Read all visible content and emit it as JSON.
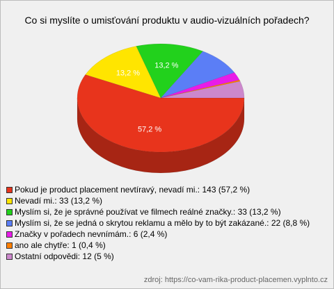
{
  "chart_data": {
    "type": "pie",
    "title": "Co si myslíte o umisťování produktu v audio-vizuálních pořadech?",
    "categories": [
      "Pokud je product placement nevtíravý, nevadí mi.: 143 (57,2 %)",
      "Nevadí mi.: 33 (13,2 %)",
      "Myslím si, že je správné používat ve filmech reálné značky.: 33 (13,2 %)",
      "Myslím si, že se jedná o skrytou reklamu a mělo by to být zakázané.: 22 (8,8 %)",
      "Značky v pořadech nevnímám.: 6 (2,4 %)",
      "ano ale chytře: 1 (0,4 %)",
      "Ostatní odpovědi: 12 (5 %)"
    ],
    "values": [
      57.2,
      13.2,
      13.2,
      8.8,
      2.4,
      0.4,
      5
    ],
    "value_labels": [
      "57,2 %",
      "13,2 %",
      "13,2 %",
      null,
      null,
      null,
      null
    ],
    "colors": [
      "#e8341c",
      "#ffe500",
      "#22d11c",
      "#5b7ef6",
      "#e81ce8",
      "#ff7f00",
      "#cc88cc"
    ],
    "source": "zdroj: https://co-vam-rika-product-placemen.vyplnto.cz"
  }
}
